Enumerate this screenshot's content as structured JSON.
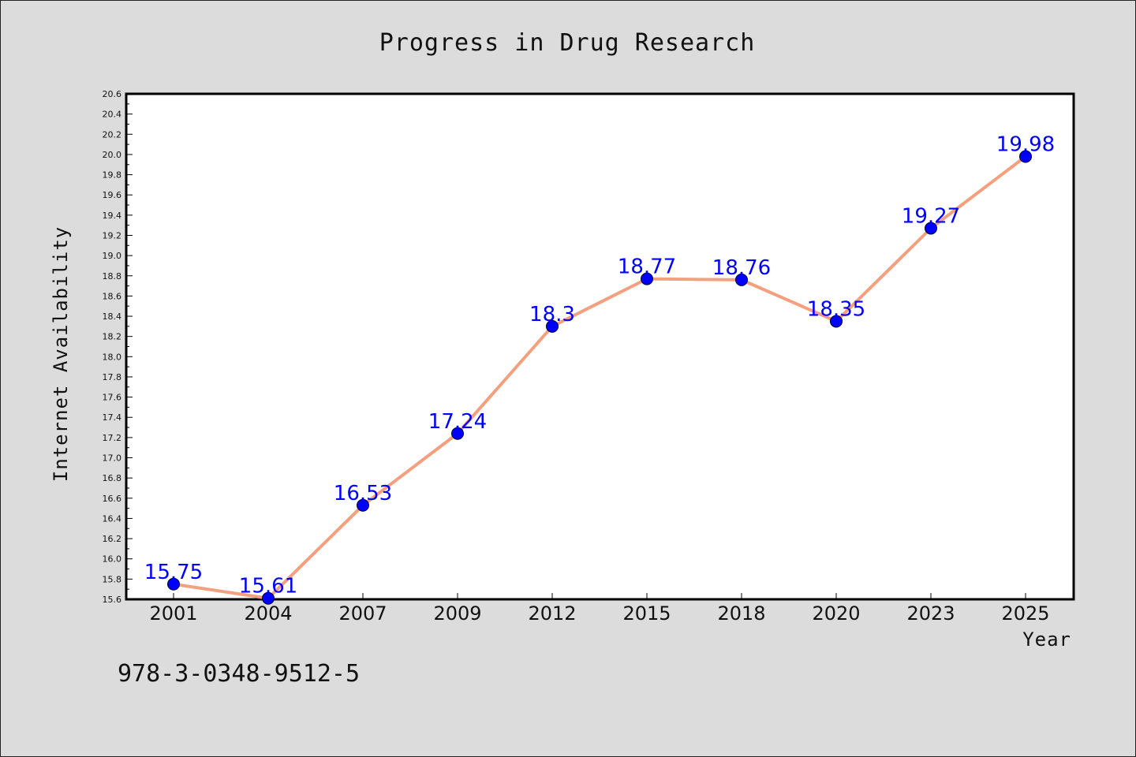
{
  "chart_data": {
    "type": "line",
    "title": "Progress in Drug Research",
    "xlabel": "Year",
    "ylabel": "Internet Availability",
    "categories": [
      "2001",
      "2004",
      "2007",
      "2009",
      "2012",
      "2015",
      "2018",
      "2020",
      "2023",
      "2025"
    ],
    "series": [
      {
        "values": [
          15.75,
          15.61,
          16.53,
          17.24,
          18.3,
          18.77,
          18.76,
          18.35,
          19.27,
          19.98
        ],
        "labels": [
          "15.75",
          "15.61",
          "16.53",
          "17.24",
          "18.3",
          "18.77",
          "18.76",
          "18.35",
          "19.27",
          "19.98"
        ],
        "line_color": "#f4a07e",
        "marker_color": "#0000ff"
      }
    ],
    "ylim": [
      15.6,
      20.6
    ],
    "yticks": [
      "15.6",
      "15.8",
      "16.0",
      "16.2",
      "16.4",
      "16.6",
      "16.8",
      "17.0",
      "17.2",
      "17.4",
      "17.6",
      "17.8",
      "18.0",
      "18.2",
      "18.4",
      "18.6",
      "18.8",
      "19.0",
      "19.2",
      "19.4",
      "19.6",
      "19.8",
      "20.0",
      "20.2",
      "20.4",
      "20.6"
    ],
    "grid": false,
    "background": "#dcdcdc",
    "plot_background": "#ffffff"
  },
  "annotation": {
    "isbn": "978-3-0348-9512-5"
  }
}
